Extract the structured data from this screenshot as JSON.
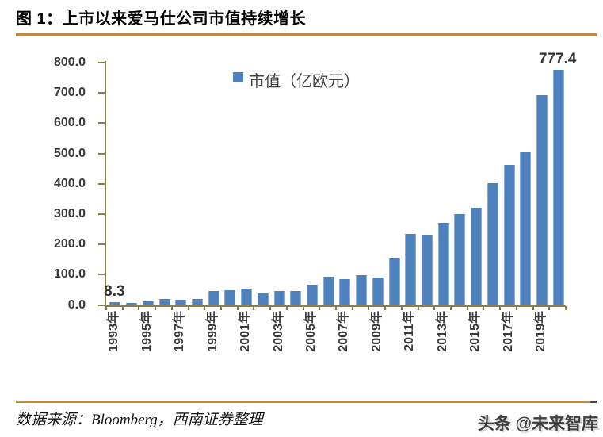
{
  "title": "图 1：上市以来爱马仕公司市值持续增长",
  "chart_data": {
    "type": "bar",
    "legend": "市值（亿欧元）",
    "legend_position": "top-center",
    "grid": false,
    "categories": [
      1993,
      1994,
      1995,
      1996,
      1997,
      1998,
      1999,
      2000,
      2001,
      2002,
      2003,
      2004,
      2005,
      2006,
      2007,
      2008,
      2009,
      2010,
      2011,
      2012,
      2013,
      2014,
      2015,
      2016,
      2017,
      2018,
      2019,
      2020
    ],
    "values": [
      8.3,
      6,
      11,
      20,
      17,
      19,
      46,
      48,
      54,
      38,
      46,
      45,
      67,
      93,
      84,
      98,
      91,
      157,
      234,
      231,
      270,
      301,
      320,
      402,
      463,
      503,
      692,
      777.4
    ],
    "x_tick_labels": [
      "1993年",
      "1995年",
      "1997年",
      "1999年",
      "2001年",
      "2003年",
      "2005年",
      "2007年",
      "2009年",
      "2011年",
      "2013年",
      "2015年",
      "2017年",
      "2019年"
    ],
    "x_tick_label_step": 2,
    "ylim": [
      0,
      800
    ],
    "ytick_step": 100,
    "ytick_labels": [
      "800.0",
      "700.0",
      "600.0",
      "500.0",
      "400.0",
      "300.0",
      "200.0",
      "100.0",
      "0.0"
    ],
    "data_labels": [
      {
        "index": 0,
        "text": "8.3"
      },
      {
        "index": 27,
        "text": "777.4"
      }
    ],
    "bar_color": "#4f81bd",
    "bar_edge_color": "#8aabd3",
    "axis_color": "#8b7d4a",
    "label_color": "#3a3a3a"
  },
  "rules": {
    "title_rule_color": "#bf8b3e",
    "footer_rule_color": "#bf8b3e"
  },
  "footer": {
    "source": "数据来源：Bloomberg，西南证券整理",
    "watermark": "头条 @未来智库"
  }
}
